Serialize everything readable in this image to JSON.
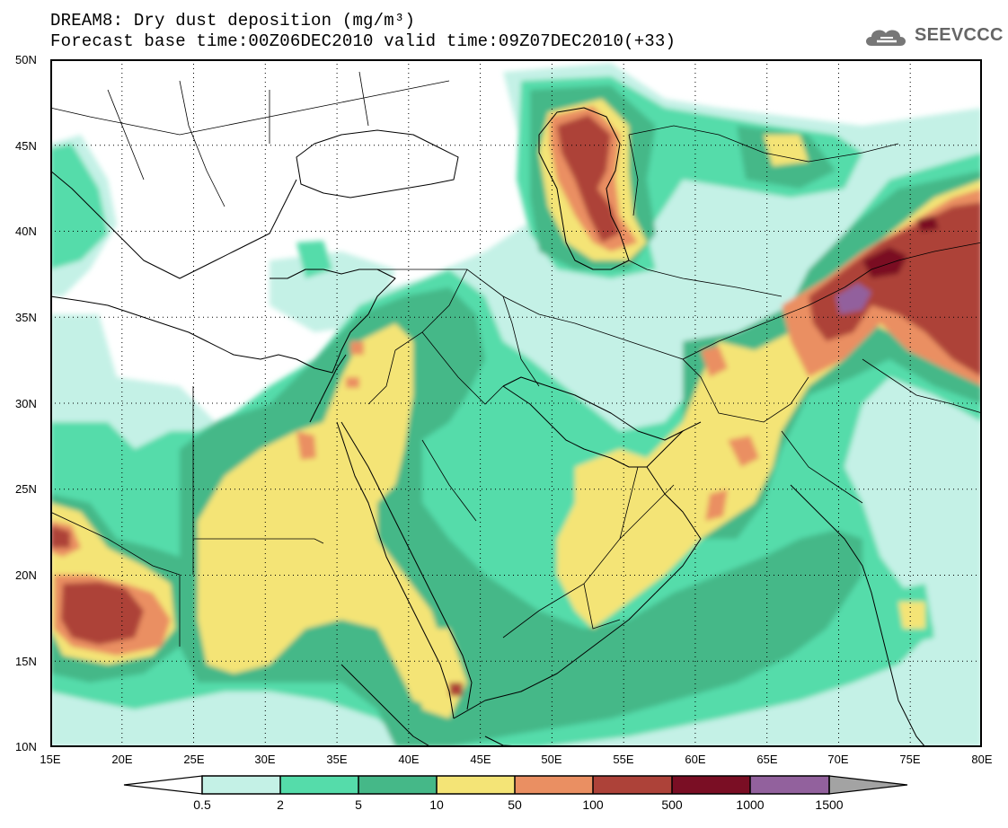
{
  "title": {
    "line1": "DREAM8: Dry dust deposition (mg/m³)",
    "line2": "Forecast base time:00Z06DEC2010 valid time:09Z07DEC2010(+33)"
  },
  "logo": {
    "text": "SEEVCCC",
    "icon": "cloud-icon"
  },
  "map": {
    "lon_range": [
      15,
      80
    ],
    "lat_range": [
      10,
      50
    ],
    "gridlines": "dotted",
    "lat_labels": [
      "50N",
      "45N",
      "40N",
      "35N",
      "30N",
      "25N",
      "20N",
      "15N",
      "10N"
    ],
    "lon_labels": [
      "15E",
      "20E",
      "25E",
      "30E",
      "35E",
      "40E",
      "45E",
      "50E",
      "55E",
      "60E",
      "65E",
      "70E",
      "75E",
      "80E"
    ]
  },
  "colorbar": {
    "labels": [
      "0.5",
      "2",
      "5",
      "10",
      "50",
      "100",
      "500",
      "1000",
      "1500"
    ],
    "colors": [
      "#c4f1e6",
      "#55dcaa",
      "#45b888",
      "#f4e476",
      "#ea8f62",
      "#ad4239",
      "#7a0e24",
      "#92619d"
    ],
    "below_color": "#ffffff",
    "above_color": "#a3a3a3"
  },
  "levels": {
    "very_light": "#c4f1e6",
    "light": "#55dcaa",
    "medium": "#45b888",
    "yellow": "#f4e476",
    "orange": "#ea8f62",
    "red": "#ad4239",
    "dark": "#7a0e24",
    "purple": "#92619d"
  }
}
